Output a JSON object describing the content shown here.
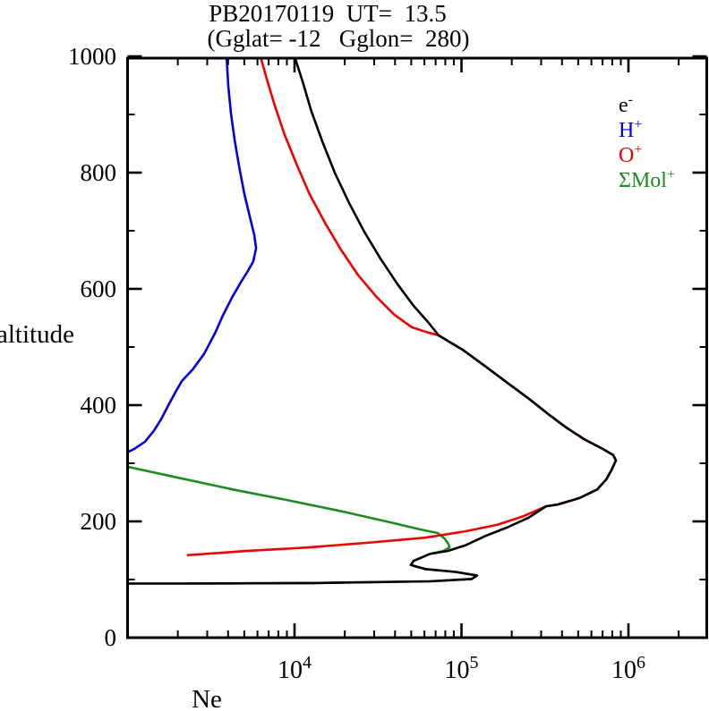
{
  "title": "PB20170119  UT=  13.5",
  "subtitle": "(Gglat= -12   Gglon=  280)",
  "axes": {
    "x_label": "Ne",
    "y_label": "altitude"
  },
  "legend": [
    {
      "base": "e",
      "sup": "-",
      "color": "#000000"
    },
    {
      "base": "H",
      "sup": "+",
      "color": "#0000e0"
    },
    {
      "base": "O",
      "sup": "+",
      "color": "#ee0000"
    },
    {
      "base": "ΣMol",
      "sup": "+",
      "color": "#1f8b1f"
    }
  ],
  "chart_data": {
    "type": "line",
    "title": "PB20170119 UT= 13.5 (Gglat= -12 Gglon= 280)",
    "xlabel": "Ne",
    "ylabel": "altitude",
    "x_scale": "log",
    "xlim": [
      1000,
      3000000
    ],
    "ylim": [
      0,
      1000
    ],
    "x_major_tick_exponents": [
      4,
      5,
      6
    ],
    "y_major_ticks": [
      0,
      200,
      400,
      600,
      800,
      1000
    ],
    "y_minor_ticks": [
      100,
      300,
      500,
      700,
      900
    ],
    "grid": false,
    "legend_position": "upper right",
    "draw_order": [
      3,
      1,
      2,
      0
    ],
    "series": [
      {
        "name": "e-",
        "color": "#000000",
        "points": [
          [
            10000,
            1000
          ],
          [
            11200,
            956
          ],
          [
            12600,
            906
          ],
          [
            14700,
            853
          ],
          [
            17400,
            800
          ],
          [
            21200,
            748
          ],
          [
            26200,
            698
          ],
          [
            32700,
            652
          ],
          [
            41400,
            608
          ],
          [
            51600,
            571
          ],
          [
            63000,
            543
          ],
          [
            73000,
            520
          ],
          [
            102000,
            495
          ],
          [
            140000,
            466
          ],
          [
            189000,
            438
          ],
          [
            251000,
            412
          ],
          [
            333000,
            384
          ],
          [
            427000,
            361
          ],
          [
            546000,
            341
          ],
          [
            700000,
            325
          ],
          [
            811000,
            314
          ],
          [
            841000,
            305
          ],
          [
            791000,
            288
          ],
          [
            735000,
            272
          ],
          [
            650000,
            255
          ],
          [
            507000,
            240
          ],
          [
            378000,
            229
          ],
          [
            321000,
            226
          ],
          [
            251000,
            206
          ],
          [
            189000,
            190
          ],
          [
            139000,
            175
          ],
          [
            106000,
            159
          ],
          [
            82600,
            149
          ],
          [
            64600,
            144
          ],
          [
            51600,
            132
          ],
          [
            49800,
            125
          ],
          [
            60700,
            118
          ],
          [
            92300,
            113
          ],
          [
            124000,
            107
          ],
          [
            115000,
            101
          ],
          [
            64600,
            97
          ],
          [
            13000,
            94
          ],
          [
            2000,
            93
          ],
          [
            1000,
            93
          ]
        ]
      },
      {
        "name": "H+",
        "color": "#0000e0",
        "points": [
          [
            3920,
            1000
          ],
          [
            4010,
            949
          ],
          [
            4160,
            902
          ],
          [
            4380,
            856
          ],
          [
            4660,
            810
          ],
          [
            5010,
            763
          ],
          [
            5400,
            724
          ],
          [
            5740,
            693
          ],
          [
            5890,
            670
          ],
          [
            5660,
            647
          ],
          [
            5260,
            631
          ],
          [
            4760,
            611
          ],
          [
            4220,
            585
          ],
          [
            3720,
            554
          ],
          [
            3330,
            523
          ],
          [
            2870,
            488
          ],
          [
            2450,
            461
          ],
          [
            2110,
            441
          ],
          [
            1940,
            423
          ],
          [
            1750,
            399
          ],
          [
            1590,
            376
          ],
          [
            1440,
            356
          ],
          [
            1270,
            337
          ],
          [
            1100,
            325
          ],
          [
            1000,
            319
          ]
        ]
      },
      {
        "name": "O+",
        "color": "#ee0000",
        "points": [
          [
            6250,
            1000
          ],
          [
            6820,
            961
          ],
          [
            7620,
            915
          ],
          [
            8730,
            865
          ],
          [
            10300,
            814
          ],
          [
            12300,
            763
          ],
          [
            15200,
            714
          ],
          [
            19000,
            667
          ],
          [
            24000,
            624
          ],
          [
            30800,
            587
          ],
          [
            39400,
            556
          ],
          [
            50400,
            534
          ],
          [
            63000,
            525
          ],
          [
            73000,
            520
          ],
          [
            102000,
            495
          ],
          [
            140000,
            466
          ],
          [
            189000,
            438
          ],
          [
            251000,
            412
          ],
          [
            333000,
            384
          ],
          [
            427000,
            361
          ],
          [
            546000,
            341
          ],
          [
            700000,
            325
          ],
          [
            811000,
            314
          ],
          [
            841000,
            305
          ],
          [
            791000,
            288
          ],
          [
            735000,
            272
          ],
          [
            650000,
            255
          ],
          [
            507000,
            240
          ],
          [
            378000,
            229
          ],
          [
            321000,
            226
          ],
          [
            236000,
            209
          ],
          [
            163000,
            194
          ],
          [
            106000,
            183
          ],
          [
            60700,
            172
          ],
          [
            26900,
            163
          ],
          [
            11700,
            155
          ],
          [
            5130,
            149
          ],
          [
            2300,
            142
          ]
        ]
      },
      {
        "name": "SMol+",
        "color": "#1f8b1f",
        "points": [
          [
            1000,
            294
          ],
          [
            2030,
            275
          ],
          [
            4270,
            255
          ],
          [
            8950,
            237
          ],
          [
            18700,
            218
          ],
          [
            39400,
            197
          ],
          [
            57000,
            186
          ],
          [
            72100,
            180
          ],
          [
            79600,
            170
          ],
          [
            83600,
            161
          ],
          [
            84700,
            155
          ],
          [
            77600,
            149
          ],
          [
            64600,
            144
          ],
          [
            51600,
            132
          ],
          [
            49800,
            125
          ],
          [
            60700,
            118
          ],
          [
            92300,
            113
          ],
          [
            124000,
            107
          ],
          [
            115000,
            101
          ],
          [
            64600,
            97
          ],
          [
            13000,
            94
          ],
          [
            2000,
            93
          ],
          [
            1000,
            93
          ]
        ]
      }
    ]
  }
}
